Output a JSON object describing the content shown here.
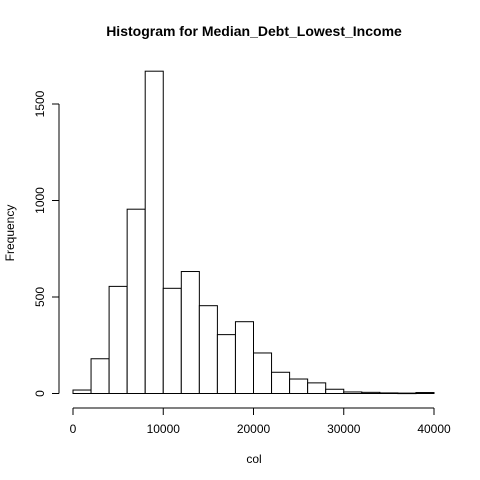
{
  "chart_data": {
    "type": "bar",
    "title": "Histogram for  Median_Debt_Lowest_Income",
    "xlabel": "col",
    "ylabel": "Frequency",
    "bin_width": 2000,
    "bins": [
      {
        "start": 0,
        "end": 2000,
        "count": 18
      },
      {
        "start": 2000,
        "end": 4000,
        "count": 180
      },
      {
        "start": 4000,
        "end": 6000,
        "count": 555
      },
      {
        "start": 6000,
        "end": 8000,
        "count": 955
      },
      {
        "start": 8000,
        "end": 10000,
        "count": 1670
      },
      {
        "start": 10000,
        "end": 12000,
        "count": 545
      },
      {
        "start": 12000,
        "end": 14000,
        "count": 632
      },
      {
        "start": 14000,
        "end": 16000,
        "count": 455
      },
      {
        "start": 16000,
        "end": 18000,
        "count": 305
      },
      {
        "start": 18000,
        "end": 20000,
        "count": 372
      },
      {
        "start": 20000,
        "end": 22000,
        "count": 210
      },
      {
        "start": 22000,
        "end": 24000,
        "count": 110
      },
      {
        "start": 24000,
        "end": 26000,
        "count": 75
      },
      {
        "start": 26000,
        "end": 28000,
        "count": 55
      },
      {
        "start": 28000,
        "end": 30000,
        "count": 22
      },
      {
        "start": 30000,
        "end": 32000,
        "count": 8
      },
      {
        "start": 32000,
        "end": 34000,
        "count": 6
      },
      {
        "start": 34000,
        "end": 36000,
        "count": 3
      },
      {
        "start": 36000,
        "end": 38000,
        "count": 2
      },
      {
        "start": 38000,
        "end": 40000,
        "count": 5
      }
    ],
    "xlim": [
      0,
      40000
    ],
    "ylim": [
      0,
      1700
    ],
    "x_ticks": [
      {
        "value": 0,
        "label": "0"
      },
      {
        "value": 10000,
        "label": "10000"
      },
      {
        "value": 20000,
        "label": "20000"
      },
      {
        "value": 30000,
        "label": "30000"
      },
      {
        "value": 40000,
        "label": "40000"
      }
    ],
    "y_ticks": [
      {
        "value": 0,
        "label": "0"
      },
      {
        "value": 500,
        "label": "500"
      },
      {
        "value": 1000,
        "label": "1000"
      },
      {
        "value": 1500,
        "label": "1500"
      }
    ],
    "grid": false,
    "legend": "none"
  }
}
